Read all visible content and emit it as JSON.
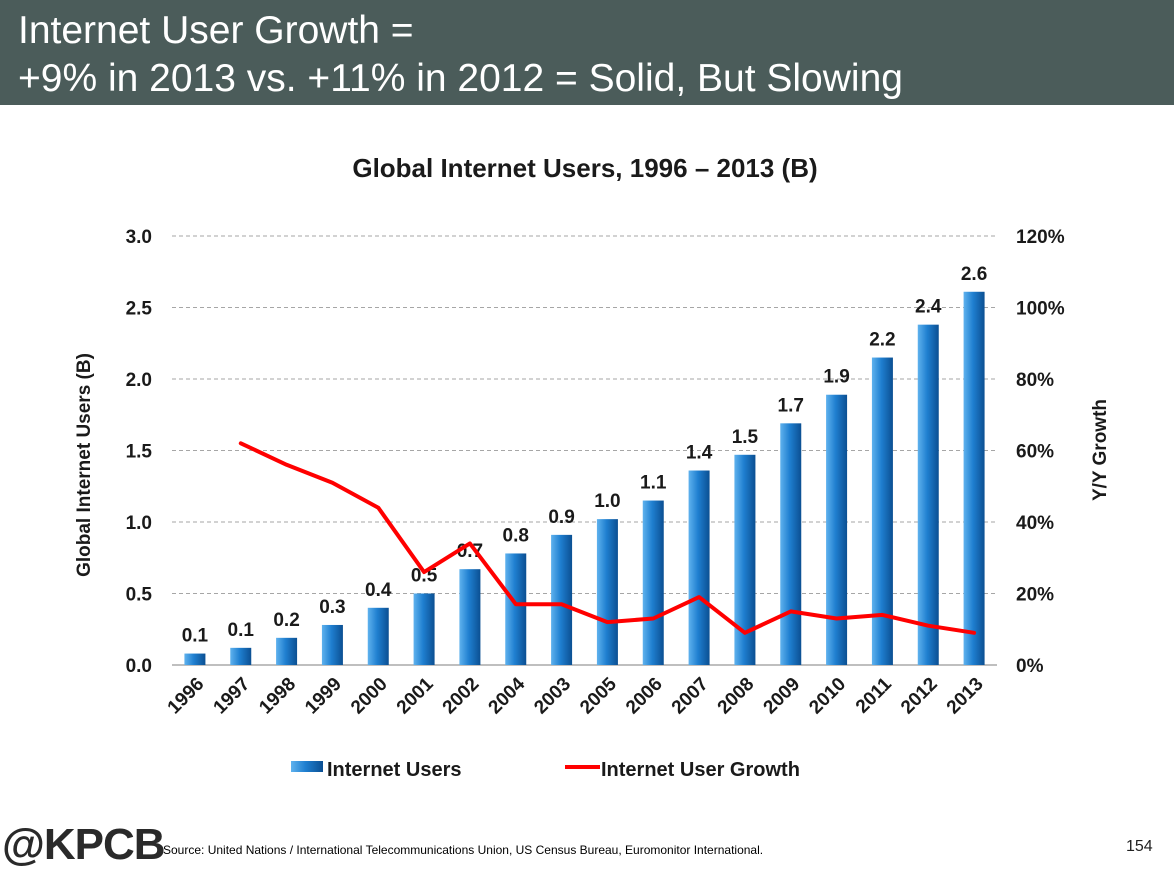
{
  "slide": {
    "title_line1": "Internet User Growth =",
    "title_line2": "+9% in 2013 vs. +11% in 2012 = Solid, But Slowing",
    "logo": "@KPCB",
    "source": "Source: United Nations / International Telecommunications Union, US Census Bureau, Euromonitor International.",
    "page_number": "154"
  },
  "chart_data": {
    "type": "bar",
    "title": "Global Internet Users, 1996 – 2013 (B)",
    "ylabel": "Global Internet Users (B)",
    "y2label": "Y/Y Growth",
    "xlabel": "",
    "categories": [
      "1996",
      "1997",
      "1998",
      "1999",
      "2000",
      "2001",
      "2002",
      "2004",
      "2003",
      "2005",
      "2006",
      "2007",
      "2008",
      "2009",
      "2010",
      "2011",
      "2012",
      "2013"
    ],
    "ylim": [
      0,
      3.0
    ],
    "y_ticks": [
      "0.0",
      "0.5",
      "1.0",
      "1.5",
      "2.0",
      "2.5",
      "3.0"
    ],
    "y2lim": [
      0,
      120
    ],
    "y2_ticks": [
      "0%",
      "20%",
      "40%",
      "60%",
      "80%",
      "100%",
      "120%"
    ],
    "grid": true,
    "legend_position": "bottom",
    "series": [
      {
        "name": "Internet Users",
        "kind": "bar",
        "color": "#1f7fd0",
        "values": [
          0.08,
          0.12,
          0.19,
          0.28,
          0.4,
          0.5,
          0.67,
          0.78,
          0.91,
          1.02,
          1.15,
          1.36,
          1.47,
          1.69,
          1.89,
          2.15,
          2.38,
          2.61
        ],
        "labels": [
          "0.1",
          "0.1",
          "0.2",
          "0.3",
          "0.4",
          "0.5",
          "0.7",
          "0.8",
          "0.9",
          "1.0",
          "1.1",
          "1.4",
          "1.5",
          "1.7",
          "1.9",
          "2.2",
          "2.4",
          "2.6"
        ]
      },
      {
        "name": "Internet User Growth",
        "kind": "line",
        "axis": "right",
        "color": "#ff0000",
        "values": [
          null,
          62,
          56,
          51,
          44,
          26,
          34,
          17,
          17,
          12,
          13,
          19,
          9,
          15,
          13,
          14,
          11,
          9
        ]
      }
    ]
  }
}
